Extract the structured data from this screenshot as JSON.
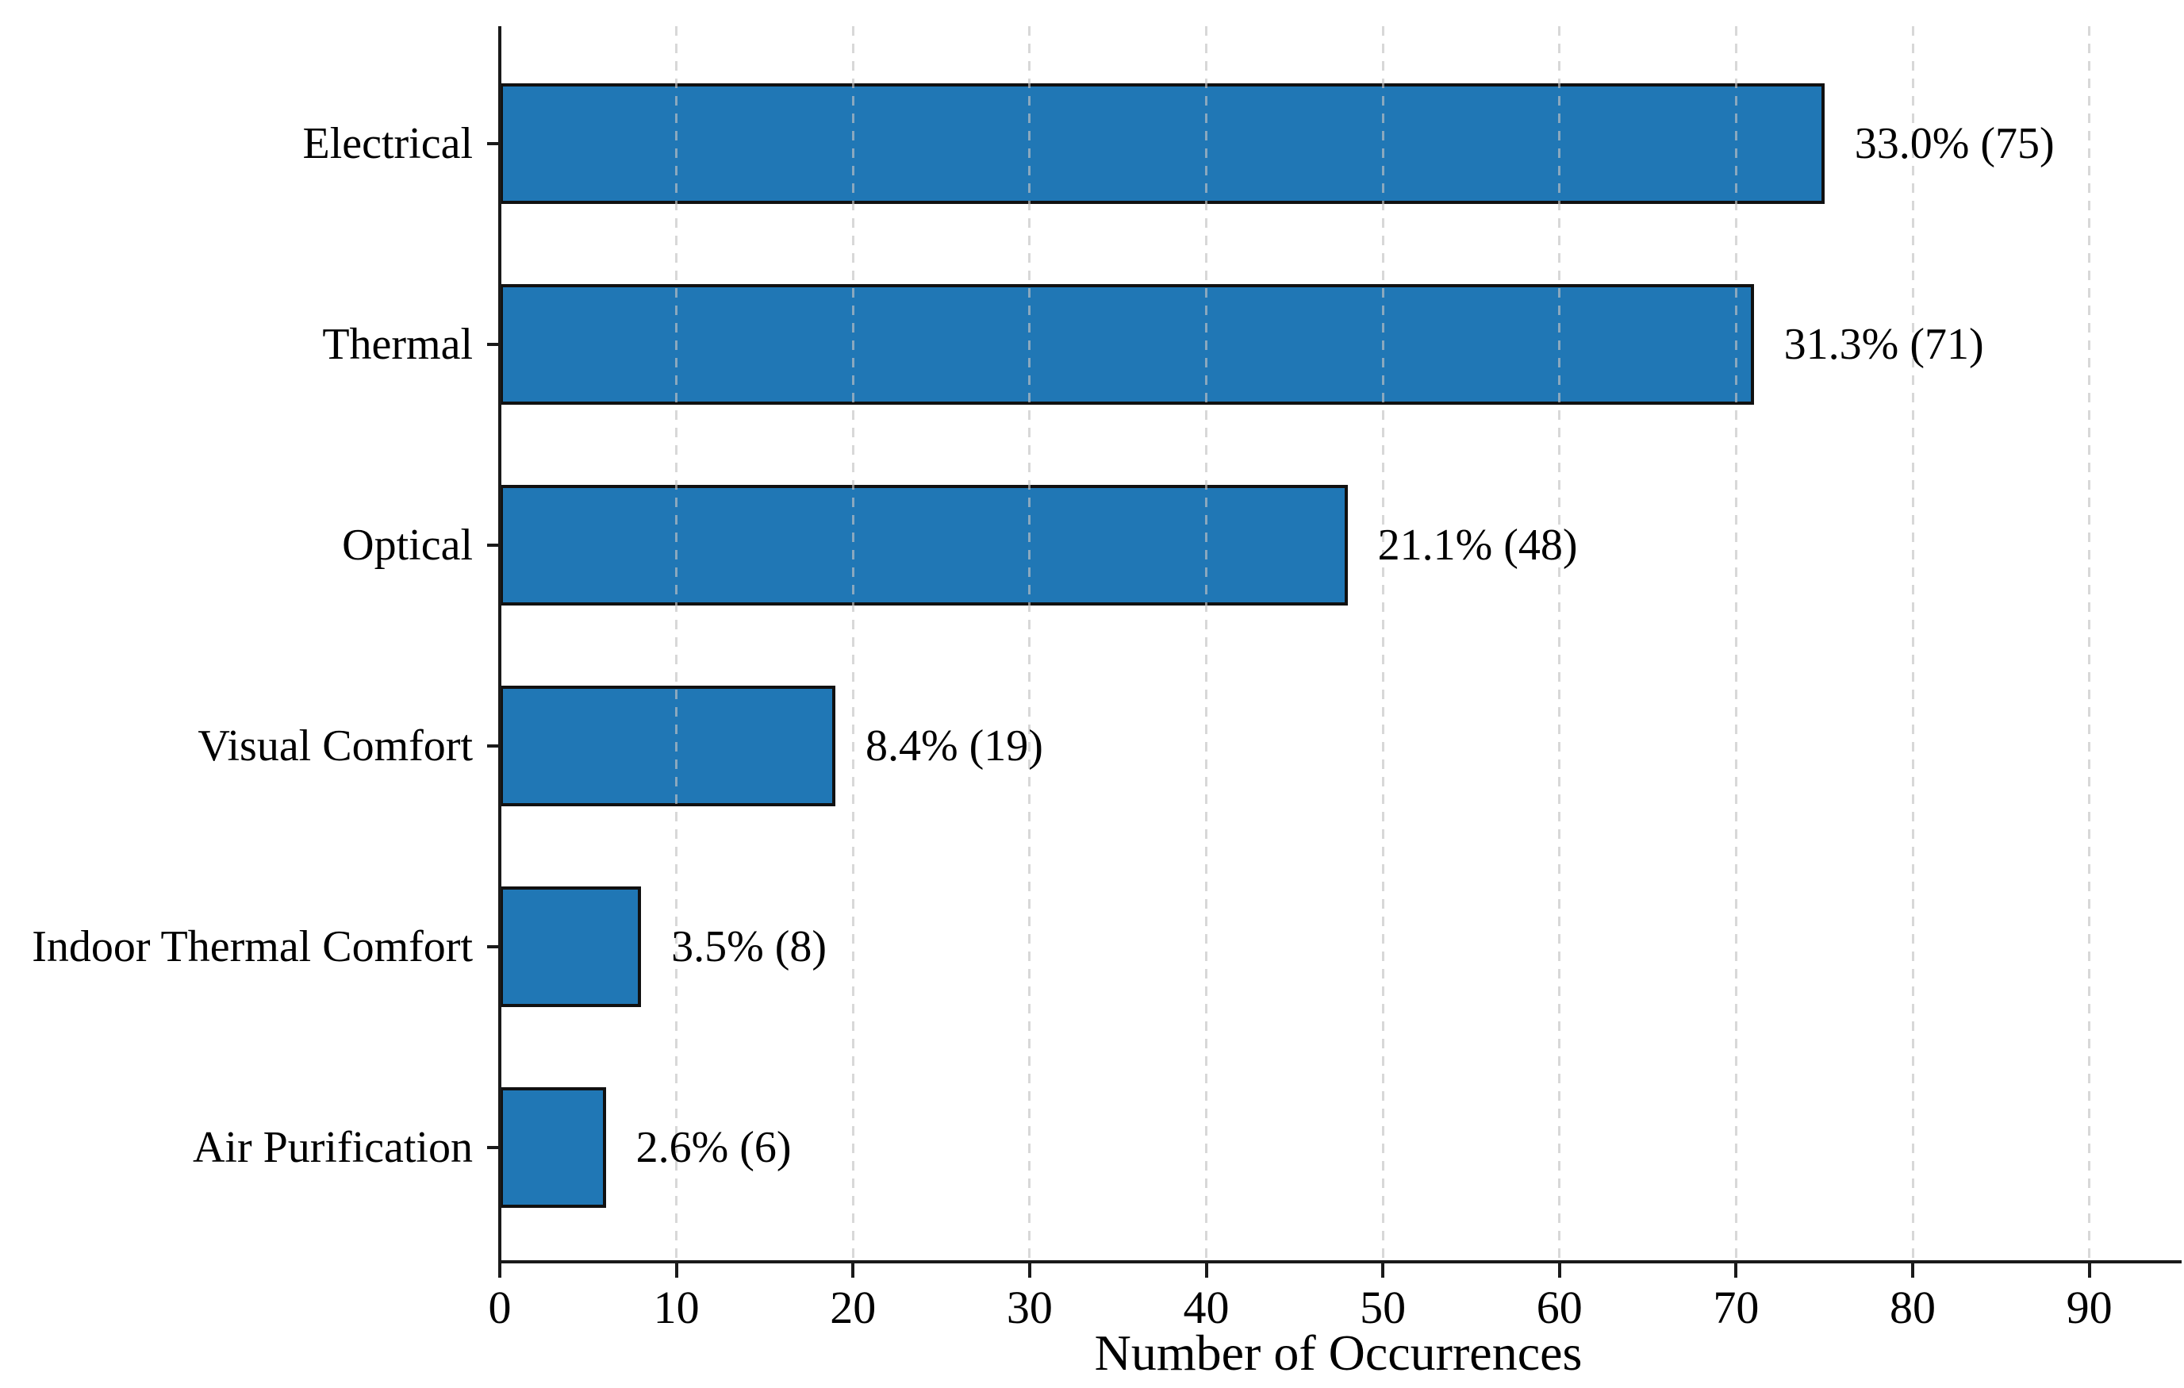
{
  "chart_data": {
    "type": "bar",
    "orientation": "horizontal",
    "title": "",
    "xlabel": "Number of Occurrences",
    "ylabel": "",
    "categories": [
      "Electrical",
      "Thermal",
      "Optical",
      "Visual Comfort",
      "Indoor Thermal Comfort",
      "Air Purification"
    ],
    "values": [
      75,
      71,
      48,
      19,
      8,
      6
    ],
    "percentages": [
      33.0,
      31.3,
      21.1,
      8.4,
      3.5,
      2.6
    ],
    "bar_labels": [
      "33.0% (75)",
      "31.3% (71)",
      "21.1% (48)",
      "8.4% (19)",
      "3.5% (8)",
      "2.6% (6)"
    ],
    "x_ticks": [
      0,
      10,
      20,
      30,
      40,
      50,
      60,
      70,
      80,
      90
    ],
    "xlim": [
      0,
      95
    ],
    "grid": "vertical-dashed",
    "legend": "none",
    "colors": {
      "bar_fill": "#2077b5",
      "bar_edge": "#111111",
      "axis": "#1a1a1a",
      "grid": "#c3c3c3",
      "text": "#000000",
      "background": "#ffffff"
    }
  }
}
